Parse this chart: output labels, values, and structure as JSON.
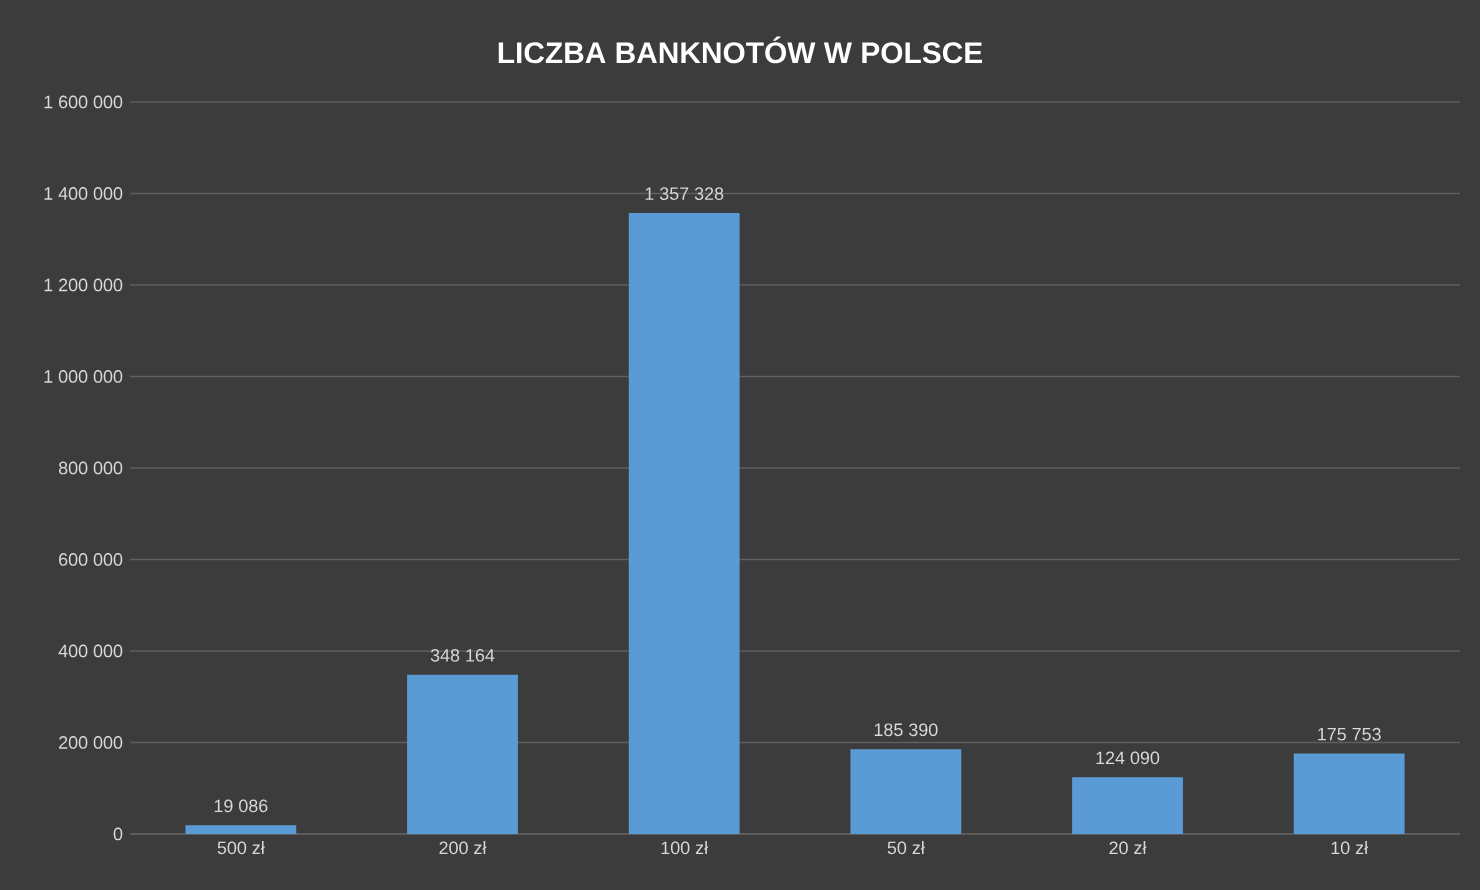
{
  "chart_data": {
    "type": "bar",
    "title": "LICZBA  BANKNOTÓW  W POLSCE",
    "categories": [
      "500 zł",
      "200 zł",
      "100 zł",
      "50 zł",
      "20 zł",
      "10 zł"
    ],
    "values": [
      19086,
      348164,
      1357328,
      185390,
      124090,
      175753
    ],
    "value_labels": [
      "19 086",
      "348 164",
      "1 357 328",
      "185 390",
      "124 090",
      "175 753"
    ],
    "color": "#5b9bd5",
    "ylim": [
      0,
      1600000
    ],
    "yticks": [
      {
        "value": 0,
        "label": "0"
      },
      {
        "value": 200000,
        "label": "200 000"
      },
      {
        "value": 400000,
        "label": "400 000"
      },
      {
        "value": 600000,
        "label": "600 000"
      },
      {
        "value": 800000,
        "label": "800 000"
      },
      {
        "value": 1000000,
        "label": "1 000 000"
      },
      {
        "value": 1200000,
        "label": "1 200 000"
      },
      {
        "value": 1400000,
        "label": "1 400 000"
      },
      {
        "value": 1600000,
        "label": "1 600 000"
      }
    ],
    "grid": "y"
  }
}
